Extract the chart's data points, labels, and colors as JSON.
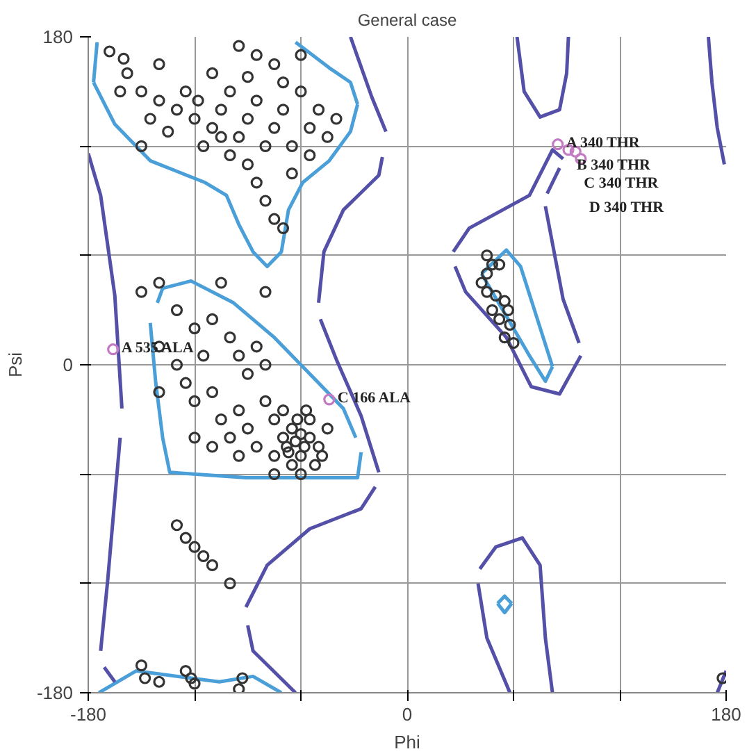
{
  "chart_data": {
    "type": "scatter",
    "title": "General case",
    "xlabel": "Phi",
    "ylabel": "Psi",
    "xlim": [
      -180,
      180
    ],
    "ylim": [
      -180,
      180
    ],
    "xticks": [
      -180,
      {
        "value": -120,
        "label": null
      },
      {
        "value": -60,
        "label": null
      },
      0,
      {
        "value": 60,
        "label": null
      },
      {
        "value": 120,
        "label": null
      },
      180
    ],
    "yticks": [
      -180,
      {
        "value": -120,
        "label": null
      },
      {
        "value": -60,
        "label": null
      },
      0,
      {
        "value": 60,
        "label": null
      },
      {
        "value": 120,
        "label": null
      },
      180
    ],
    "grid": true,
    "series": [
      {
        "type": "line",
        "color": "#4a9fd8",
        "x": [
          -175,
          -177
        ],
        "values": [
          177,
          155
        ]
      },
      {
        "type": "line",
        "color": "#4a9fd8",
        "x": [
          -177,
          -165,
          -145,
          -114,
          -102,
          -95,
          -87,
          -79,
          -71,
          -67,
          -59,
          -44,
          -32,
          -28
        ],
        "values": [
          155,
          132,
          112,
          100,
          93,
          77,
          62,
          54,
          62,
          85,
          100,
          112,
          128,
          143
        ]
      },
      {
        "type": "line",
        "color": "#4a9fd8",
        "x": [
          -28,
          -32,
          -44,
          -63
        ],
        "values": [
          143,
          155,
          163,
          177
        ]
      },
      {
        "type": "line",
        "color": "#4a9fd8",
        "x": [
          -145,
          -142,
          -138,
          -134,
          -91,
          -28,
          -26
        ],
        "values": [
          23,
          -9,
          -40,
          -59,
          -62,
          -62,
          -48
        ]
      },
      {
        "type": "line",
        "color": "#4a9fd8",
        "x": [
          -29,
          -36,
          -51,
          -75,
          -98,
          -122,
          -138,
          -141
        ],
        "values": [
          -40,
          -24,
          -9,
          15,
          34,
          46,
          42,
          34
        ]
      },
      {
        "type": "line",
        "color": "#4a9fd8",
        "x": [
          -174,
          -153,
          -106,
          -87,
          -71
        ],
        "values": [
          -180,
          -168,
          -174,
          -171,
          -180
        ]
      },
      {
        "type": "line",
        "color": "#4a9fd8",
        "x": [
          42,
          56,
          64,
          82
        ],
        "values": [
          50,
          63,
          54,
          -1
        ]
      },
      {
        "type": "line",
        "color": "#4a9fd8",
        "x": [
          82,
          78,
          69,
          42
        ],
        "values": [
          -1,
          -9,
          5,
          50
        ]
      },
      {
        "type": "line",
        "color": "#4a9fd8",
        "x": [
          51,
          55,
          59
        ],
        "values": [
          -131,
          -127,
          -131
        ]
      },
      {
        "type": "line",
        "color": "#4a9fd8",
        "x": [
          51,
          55,
          59
        ],
        "values": [
          -131,
          -136,
          -131
        ]
      },
      {
        "type": "line",
        "color": "#5450a8",
        "x": [
          -180,
          -173,
          -165,
          -161
        ],
        "values": [
          116,
          93,
          38,
          -24
        ]
      },
      {
        "type": "line",
        "color": "#5450a8",
        "x": [
          -162,
          -169,
          -173
        ],
        "values": [
          -40,
          -118,
          -157
        ]
      },
      {
        "type": "line",
        "color": "#5450a8",
        "x": [
          -171,
          -165
        ],
        "values": [
          -166,
          -174
        ]
      },
      {
        "type": "line",
        "color": "#5450a8",
        "x": [
          -32,
          -20,
          -12
        ],
        "values": [
          180,
          147,
          128
        ]
      },
      {
        "type": "line",
        "color": "#5450a8",
        "x": [
          -14,
          -16,
          -36,
          -47,
          -50
        ],
        "values": [
          114,
          104,
          85,
          62,
          34
        ]
      },
      {
        "type": "line",
        "color": "#5450a8",
        "x": [
          -49,
          -40,
          -26,
          -16
        ],
        "values": [
          25,
          3,
          -28,
          -59
        ]
      },
      {
        "type": "line",
        "color": "#5450a8",
        "x": [
          -18,
          -26,
          -55,
          -79,
          -91
        ],
        "values": [
          -67,
          -79,
          -90,
          -110,
          -133
        ]
      },
      {
        "type": "line",
        "color": "#5450a8",
        "x": [
          -90,
          -87,
          -63
        ],
        "values": [
          -143,
          -157,
          -180
        ]
      },
      {
        "type": "line",
        "color": "#5450a8",
        "x": [
          88,
          82,
          69,
          35,
          26
        ],
        "values": [
          113,
          118,
          93,
          75,
          62
        ]
      },
      {
        "type": "line",
        "color": "#5450a8",
        "x": [
          27,
          33,
          56,
          70,
          86,
          98
        ],
        "values": [
          54,
          40,
          15,
          -12,
          -16,
          5
        ]
      },
      {
        "type": "line",
        "color": "#5450a8",
        "x": [
          97,
          88,
          78
        ],
        "values": [
          12,
          36,
          87
        ]
      },
      {
        "type": "line",
        "color": "#5450a8",
        "x": [
          79,
          86
        ],
        "values": [
          94,
          108
        ]
      },
      {
        "type": "line",
        "color": "#5450a8",
        "x": [
          62,
          66,
          75,
          86,
          90,
          91
        ],
        "values": [
          180,
          150,
          136,
          140,
          160,
          180
        ]
      },
      {
        "type": "line",
        "color": "#5450a8",
        "x": [
          170,
          172,
          175,
          179
        ],
        "values": [
          180,
          155,
          130,
          110
        ]
      },
      {
        "type": "line",
        "color": "#5450a8",
        "x": [
          175,
          180
        ],
        "values": [
          -180,
          -168
        ]
      },
      {
        "type": "line",
        "color": "#5450a8",
        "x": [
          58,
          45,
          40
        ],
        "values": [
          -180,
          -150,
          -120
        ]
      },
      {
        "type": "line",
        "color": "#5450a8",
        "x": [
          41,
          50,
          65,
          75,
          78,
          82
        ],
        "values": [
          -112,
          -100,
          -95,
          -110,
          -150,
          -180
        ]
      },
      {
        "color": "#333333",
        "marker": "circle",
        "x": [
          -168,
          -160,
          -158,
          -150,
          -162,
          -140,
          -130,
          -125,
          -120,
          -118,
          -110,
          -105,
          -100,
          -95,
          -90,
          -85,
          -80,
          -75,
          -70,
          -65,
          -60,
          -55,
          -50,
          -45,
          -40,
          -135,
          -115,
          -100,
          -90,
          -85,
          -80,
          -75,
          -70,
          -95,
          -85,
          -75,
          -60,
          -140,
          -145,
          -150,
          -110,
          -90,
          -70,
          -55,
          -65,
          -105,
          -150,
          -140,
          -130,
          -120,
          -110,
          -100,
          -95,
          -90,
          -85,
          -80,
          -130,
          -125,
          -120,
          -110,
          -105,
          -100,
          -95,
          -90,
          -85,
          -80,
          -75,
          -70,
          -68,
          -65,
          -63,
          -60,
          -60,
          -58,
          -55,
          -55,
          -50,
          -52,
          -65,
          -70,
          -75,
          -45,
          -48,
          -62,
          -67,
          -57,
          -95,
          -110,
          -120,
          -80,
          -105,
          -75,
          -60,
          -140,
          -140,
          -115,
          45,
          48,
          52,
          42,
          45,
          50,
          55,
          48,
          52,
          58,
          55,
          60,
          45,
          57,
          -125,
          -120,
          -115,
          -110,
          -100,
          -130,
          -150,
          -148,
          -140,
          -125,
          -122,
          -120,
          -93,
          -95,
          178
        ],
        "values": [
          172,
          168,
          160,
          150,
          150,
          165,
          140,
          150,
          135,
          145,
          130,
          140,
          150,
          125,
          135,
          145,
          120,
          130,
          140,
          120,
          150,
          130,
          140,
          125,
          135,
          128,
          120,
          115,
          110,
          100,
          90,
          80,
          75,
          175,
          170,
          165,
          170,
          145,
          135,
          120,
          160,
          158,
          155,
          115,
          105,
          125,
          40,
          45,
          30,
          20,
          25,
          15,
          5,
          -5,
          10,
          0,
          0,
          -10,
          -20,
          -15,
          -30,
          -40,
          -25,
          -35,
          -45,
          -20,
          -30,
          -40,
          -45,
          -35,
          -42,
          -38,
          -50,
          -45,
          -40,
          -30,
          -45,
          -55,
          -55,
          -25,
          -50,
          -35,
          -50,
          -30,
          -48,
          -25,
          -50,
          -45,
          -40,
          40,
          45,
          -60,
          -60,
          -15,
          10,
          5,
          60,
          55,
          55,
          45,
          40,
          38,
          35,
          30,
          25,
          22,
          15,
          12,
          50,
          30,
          -95,
          -100,
          -105,
          -110,
          -120,
          -88,
          -165,
          -172,
          -174,
          -168,
          -172,
          -175,
          -172,
          -178,
          -172
        ]
      },
      {
        "color": "#c27bc2",
        "marker": "circle",
        "x": [
          -166,
          -44,
          85,
          91,
          95,
          98
        ],
        "values": [
          8.5,
          -19,
          121,
          118,
          117,
          113
        ]
      }
    ],
    "annotations": [
      {
        "text": "A  535 ALA",
        "x": -166,
        "y": 8.5
      },
      {
        "text": "C  166 ALA",
        "x": -44,
        "y": -19
      },
      {
        "text": "A  340 THR",
        "x": 85,
        "y": 121
      },
      {
        "text": "B  340 THR",
        "x": 91,
        "y": 118
      },
      {
        "text": "C  340 THR",
        "x": 95,
        "y": 117
      },
      {
        "text": "D  340 THR",
        "x": 98,
        "y": 113
      }
    ]
  }
}
